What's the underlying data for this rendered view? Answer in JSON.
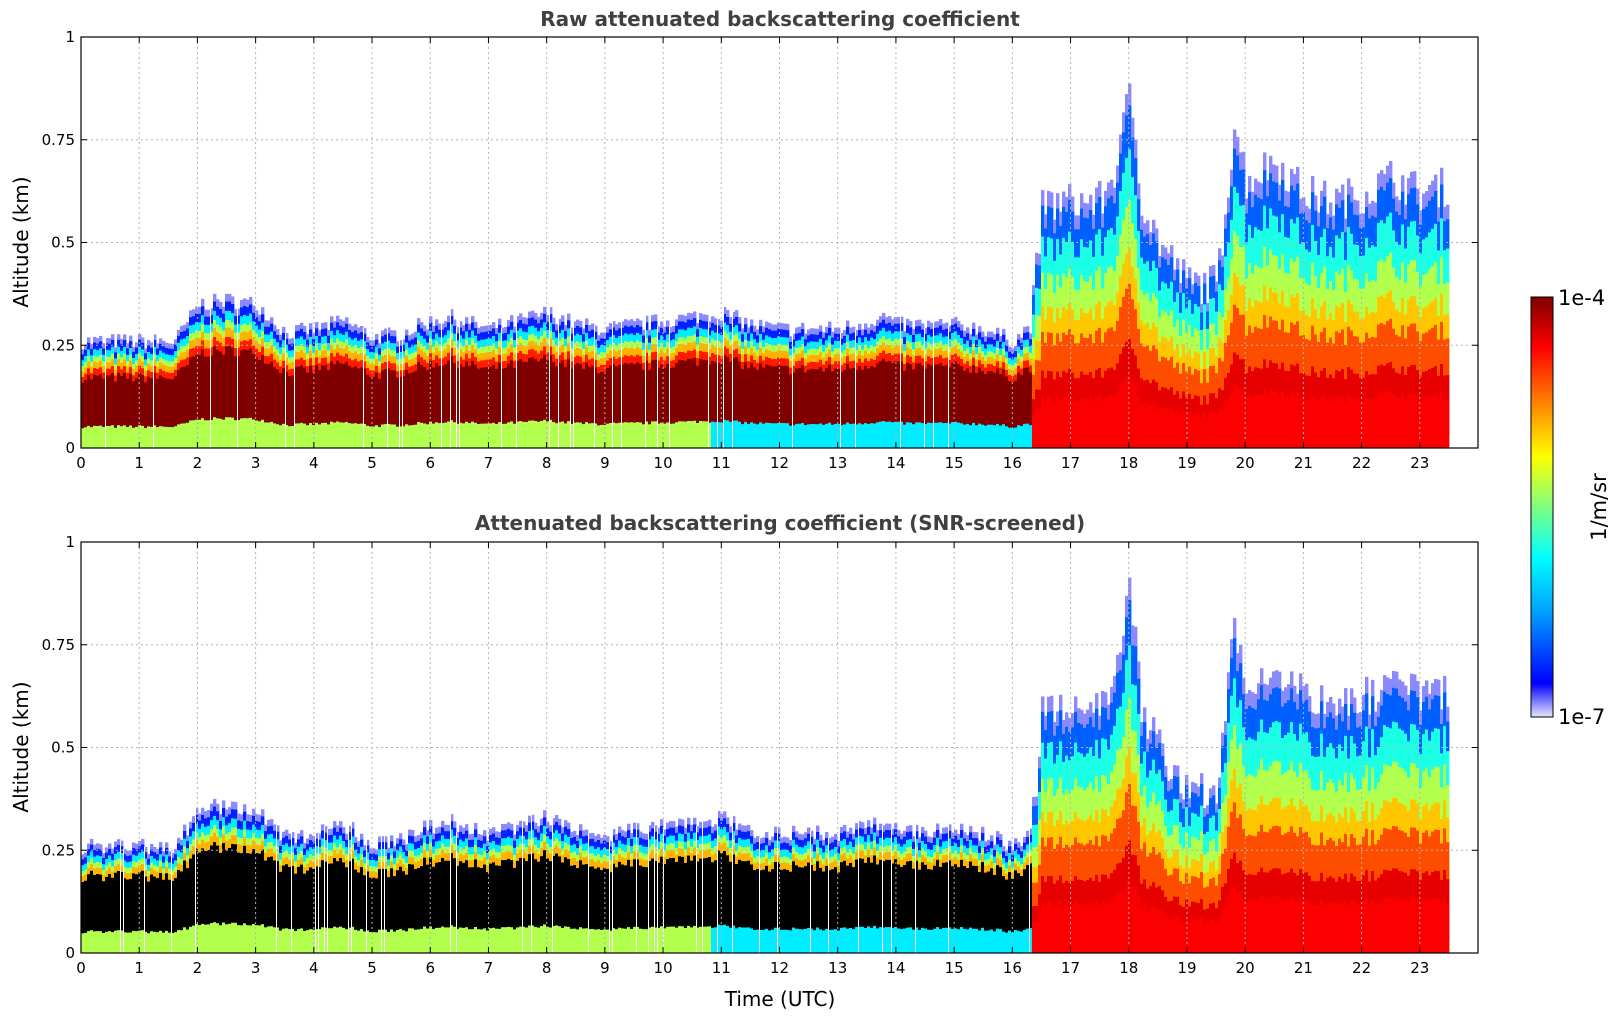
{
  "chart_data": [
    {
      "type": "heatmap",
      "title": "Raw attenuated backscattering coefficient",
      "xlabel": "",
      "ylabel": "Altitude (km)",
      "xlim": [
        0,
        24
      ],
      "ylim": [
        0,
        1
      ],
      "grid": true,
      "screened": false,
      "x_ticks": [
        "0",
        "1",
        "2",
        "3",
        "4",
        "5",
        "6",
        "7",
        "8",
        "9",
        "10",
        "11",
        "12",
        "13",
        "14",
        "15",
        "16",
        "17",
        "18",
        "19",
        "20",
        "21",
        "22",
        "23"
      ],
      "y_ticks": [
        "0",
        "0.25",
        "0.5",
        "0.75",
        "1"
      ],
      "x_tick_values": [
        0,
        1,
        2,
        3,
        4,
        5,
        6,
        7,
        8,
        9,
        10,
        11,
        12,
        13,
        14,
        15,
        16,
        17,
        18,
        19,
        20,
        21,
        22,
        23
      ],
      "y_tick_values": [
        0,
        0.25,
        0.5,
        0.75,
        1
      ],
      "data_end_hour": 23.5,
      "boundary_layer_top_km": [
        [
          0,
          0.26
        ],
        [
          1,
          0.26
        ],
        [
          1.6,
          0.26
        ],
        [
          2,
          0.35
        ],
        [
          2.5,
          0.36
        ],
        [
          3,
          0.35
        ],
        [
          3.5,
          0.28
        ],
        [
          4,
          0.29
        ],
        [
          4.5,
          0.31
        ],
        [
          5,
          0.27
        ],
        [
          5.5,
          0.28
        ],
        [
          6,
          0.31
        ],
        [
          6.3,
          0.32
        ],
        [
          7,
          0.29
        ],
        [
          7.5,
          0.31
        ],
        [
          8,
          0.33
        ],
        [
          8.5,
          0.3
        ],
        [
          9,
          0.29
        ],
        [
          9.5,
          0.3
        ],
        [
          10,
          0.31
        ],
        [
          11,
          0.33
        ],
        [
          11.5,
          0.3
        ],
        [
          12,
          0.29
        ],
        [
          13,
          0.29
        ],
        [
          13.8,
          0.32
        ],
        [
          14,
          0.3
        ],
        [
          15,
          0.3
        ],
        [
          15.5,
          0.29
        ],
        [
          16,
          0.26
        ],
        [
          16.3,
          0.3
        ],
        [
          16.5,
          0.59
        ],
        [
          17,
          0.6
        ],
        [
          17.5,
          0.6
        ],
        [
          17.8,
          0.7
        ],
        [
          18,
          0.88
        ],
        [
          18.2,
          0.6
        ],
        [
          18.5,
          0.5
        ],
        [
          19,
          0.4
        ],
        [
          19.5,
          0.4
        ],
        [
          19.8,
          0.8
        ],
        [
          20,
          0.65
        ],
        [
          20.5,
          0.7
        ],
        [
          21,
          0.62
        ],
        [
          21.5,
          0.6
        ],
        [
          22,
          0.62
        ],
        [
          22.5,
          0.66
        ],
        [
          23,
          0.62
        ],
        [
          23.5,
          0.64
        ]
      ]
    },
    {
      "type": "heatmap",
      "title": "Attenuated backscattering coefficient (SNR-screened)",
      "xlabel": "Time (UTC)",
      "ylabel": "Altitude (km)",
      "xlim": [
        0,
        24
      ],
      "ylim": [
        0,
        1
      ],
      "grid": true,
      "screened": true,
      "x_ticks": [
        "0",
        "1",
        "2",
        "3",
        "4",
        "5",
        "6",
        "7",
        "8",
        "9",
        "10",
        "11",
        "12",
        "13",
        "14",
        "15",
        "16",
        "17",
        "18",
        "19",
        "20",
        "21",
        "22",
        "23"
      ],
      "y_ticks": [
        "0",
        "0.25",
        "0.5",
        "0.75",
        "1"
      ],
      "x_tick_values": [
        0,
        1,
        2,
        3,
        4,
        5,
        6,
        7,
        8,
        9,
        10,
        11,
        12,
        13,
        14,
        15,
        16,
        17,
        18,
        19,
        20,
        21,
        22,
        23
      ],
      "y_tick_values": [
        0,
        0.25,
        0.5,
        0.75,
        1
      ],
      "data_end_hour": 23.5,
      "boundary_layer_top_km": [
        [
          0,
          0.26
        ],
        [
          1,
          0.26
        ],
        [
          1.6,
          0.26
        ],
        [
          2,
          0.35
        ],
        [
          2.5,
          0.36
        ],
        [
          3,
          0.35
        ],
        [
          3.5,
          0.28
        ],
        [
          4,
          0.29
        ],
        [
          4.5,
          0.31
        ],
        [
          5,
          0.27
        ],
        [
          5.5,
          0.28
        ],
        [
          6,
          0.31
        ],
        [
          6.3,
          0.32
        ],
        [
          7,
          0.29
        ],
        [
          7.5,
          0.31
        ],
        [
          8,
          0.33
        ],
        [
          8.5,
          0.3
        ],
        [
          9,
          0.29
        ],
        [
          9.5,
          0.3
        ],
        [
          10,
          0.31
        ],
        [
          11,
          0.33
        ],
        [
          11.5,
          0.3
        ],
        [
          12,
          0.29
        ],
        [
          13,
          0.29
        ],
        [
          13.8,
          0.32
        ],
        [
          14,
          0.3
        ],
        [
          15,
          0.3
        ],
        [
          15.5,
          0.29
        ],
        [
          16,
          0.26
        ],
        [
          16.3,
          0.3
        ],
        [
          16.5,
          0.59
        ],
        [
          17,
          0.6
        ],
        [
          17.5,
          0.6
        ],
        [
          17.8,
          0.7
        ],
        [
          18,
          0.88
        ],
        [
          18.2,
          0.6
        ],
        [
          18.5,
          0.5
        ],
        [
          19,
          0.4
        ],
        [
          19.5,
          0.4
        ],
        [
          19.8,
          0.8
        ],
        [
          20,
          0.65
        ],
        [
          20.5,
          0.7
        ],
        [
          21,
          0.62
        ],
        [
          21.5,
          0.6
        ],
        [
          22,
          0.62
        ],
        [
          22.5,
          0.66
        ],
        [
          23,
          0.62
        ],
        [
          23.5,
          0.64
        ]
      ]
    }
  ],
  "colorbar": {
    "label": "1/m/sr",
    "max_label": "1e-4",
    "min_label": "1e-7",
    "colormap": "jet",
    "colors": [
      "#e6e6fa",
      "#0000ff",
      "#00a0ff",
      "#00ffff",
      "#80ff80",
      "#ffff00",
      "#ff8000",
      "#ff0000",
      "#800000"
    ]
  },
  "colors": {
    "saturated_screened": "#000000",
    "title_color": "#404040",
    "grid_color": "#b4b4b4"
  }
}
